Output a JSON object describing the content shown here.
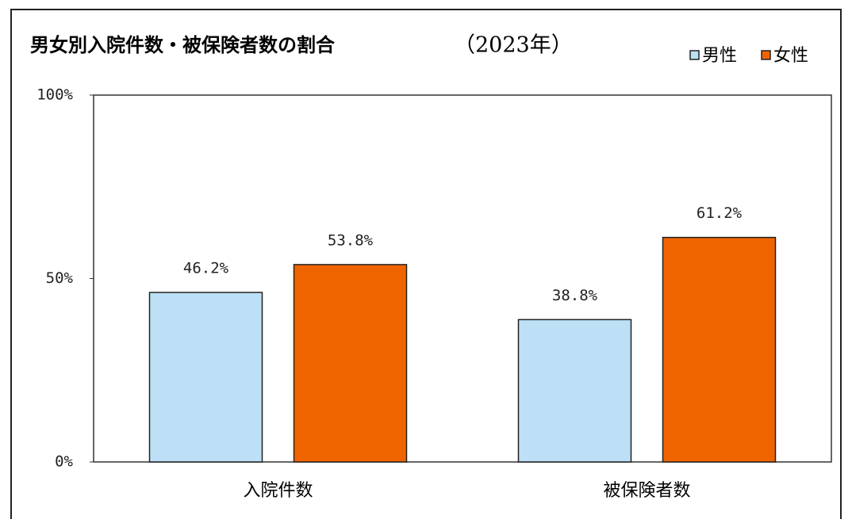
{
  "chart_data": {
    "type": "bar",
    "title": "男女別入院件数・被保険者数の割合",
    "subtitle": "（2023年）",
    "categories": [
      "入院件数",
      "被保険者数"
    ],
    "series": [
      {
        "name": "男性",
        "color": "#bde0f7",
        "values": [
          46.2,
          38.8
        ],
        "value_labels": [
          "46.2%",
          "38.8%"
        ]
      },
      {
        "name": "女性",
        "color": "#f06400",
        "values": [
          53.8,
          61.2
        ],
        "value_labels": [
          "53.8%",
          "61.2%"
        ]
      }
    ],
    "ylim": [
      0,
      100
    ],
    "yticks": [
      {
        "value": 0,
        "label": "0%"
      },
      {
        "value": 50,
        "label": "50%"
      },
      {
        "value": 100,
        "label": "100%"
      }
    ],
    "legend": "top-right"
  }
}
